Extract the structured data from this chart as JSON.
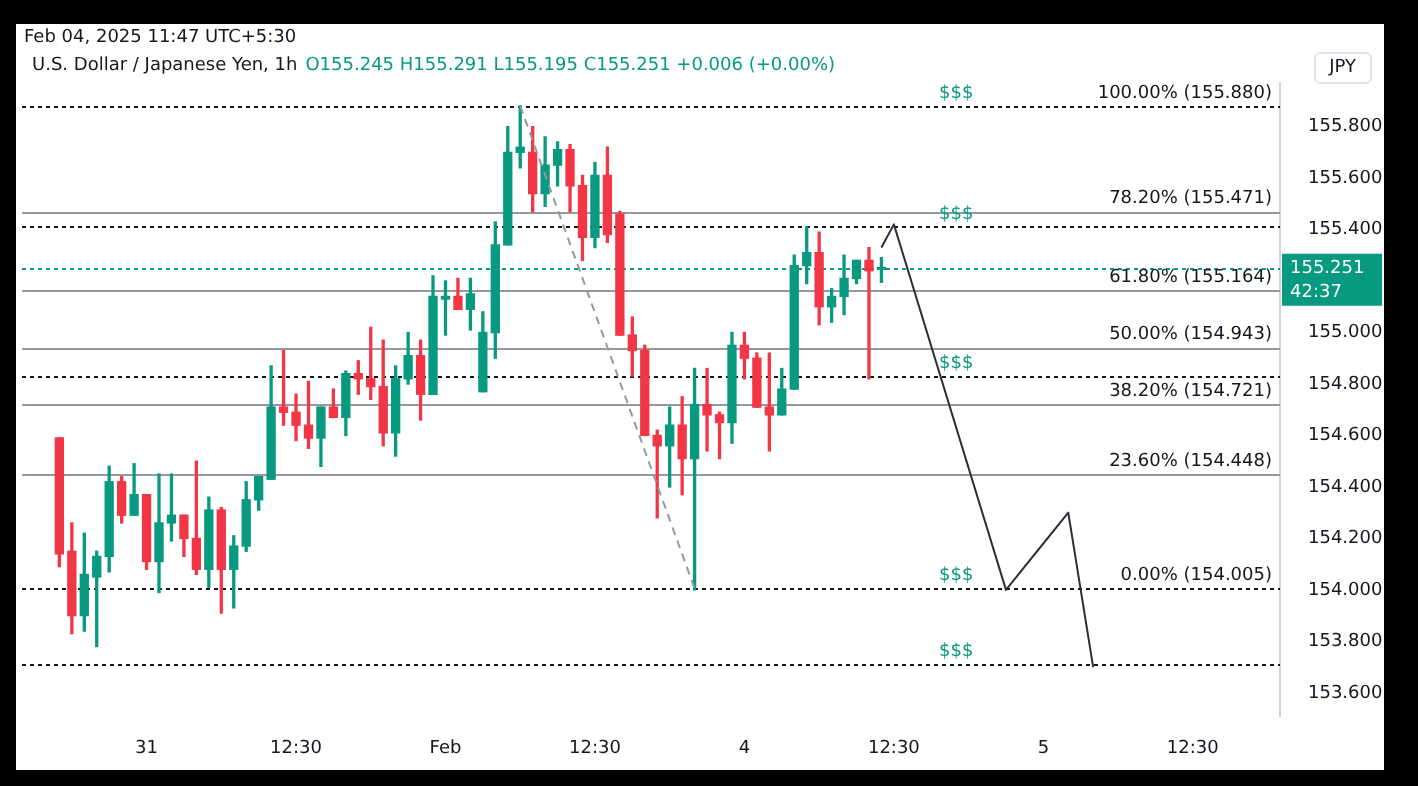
{
  "chart_data": {
    "type": "candlestick",
    "title": "U.S. Dollar / Japanese Yen, 1h",
    "subtitle": "O155.245 H155.291 L155.195 C155.251 +0.006 (+0.00%)",
    "ylabel": "JPY",
    "categories": [
      null,
      null,
      null,
      null,
      null,
      null,
      null,
      null,
      null,
      null,
      "31",
      null,
      null,
      null,
      null,
      null,
      null,
      null,
      null,
      null,
      null,
      null,
      "12:30",
      null,
      null,
      null,
      null,
      null,
      null,
      null,
      null,
      null,
      null,
      null,
      "Feb",
      null,
      null,
      null,
      null,
      null,
      null,
      null,
      null,
      null,
      null,
      null,
      "12:30",
      null,
      null,
      null,
      null,
      null,
      null,
      null,
      null,
      null,
      null,
      null,
      "4",
      null,
      null,
      null,
      null,
      null,
      null,
      null,
      null,
      null,
      null,
      null,
      "12:30",
      null,
      null,
      null,
      null,
      null,
      null,
      null,
      null,
      null,
      null,
      null,
      "5",
      null,
      null,
      null,
      null,
      null,
      null,
      null,
      null,
      null,
      null,
      null,
      "12:30",
      null,
      null,
      null,
      null,
      null,
      null,
      null
    ],
    "ohlc": [
      null,
      null,
      null,
      [
        154.59,
        154.59,
        154.09,
        154.14
      ],
      [
        154.15,
        154.26,
        153.83,
        153.9
      ],
      [
        153.9,
        154.22,
        153.84,
        154.06
      ],
      [
        154.05,
        154.15,
        153.78,
        154.13
      ],
      [
        154.13,
        154.48,
        154.07,
        154.42
      ],
      [
        154.42,
        154.44,
        154.26,
        154.29
      ],
      [
        154.29,
        154.49,
        154.29,
        154.37
      ],
      [
        154.37,
        154.37,
        154.08,
        154.11
      ],
      [
        154.11,
        154.45,
        153.99,
        154.26
      ],
      [
        154.26,
        154.45,
        154.19,
        154.29
      ],
      [
        154.29,
        154.29,
        154.13,
        154.2
      ],
      [
        154.2,
        154.5,
        154.06,
        154.08
      ],
      [
        154.08,
        154.36,
        154.01,
        154.31
      ],
      [
        154.31,
        154.32,
        153.91,
        154.08
      ],
      [
        154.08,
        154.21,
        153.93,
        154.17
      ],
      [
        154.17,
        154.42,
        154.15,
        154.35
      ],
      [
        154.35,
        154.44,
        154.31,
        154.44
      ],
      [
        154.43,
        154.87,
        154.43,
        154.71
      ],
      [
        154.71,
        154.93,
        154.64,
        154.69
      ],
      [
        154.69,
        154.76,
        154.58,
        154.64
      ],
      [
        154.64,
        154.81,
        154.55,
        154.59
      ],
      [
        154.59,
        154.71,
        154.48,
        154.71
      ],
      [
        154.71,
        154.78,
        154.67,
        154.67
      ],
      [
        154.67,
        154.85,
        154.6,
        154.84
      ],
      [
        154.84,
        154.89,
        154.76,
        154.82
      ],
      [
        154.82,
        155.02,
        154.74,
        154.79
      ],
      [
        154.79,
        154.97,
        154.56,
        154.61
      ],
      [
        154.61,
        154.87,
        154.52,
        154.82
      ],
      [
        154.82,
        155.0,
        154.8,
        154.91
      ],
      [
        154.91,
        154.97,
        154.66,
        154.76
      ],
      [
        154.76,
        155.22,
        154.76,
        155.14
      ],
      [
        155.13,
        155.2,
        154.99,
        155.14
      ],
      [
        155.14,
        155.21,
        155.09,
        155.09
      ],
      [
        155.09,
        155.21,
        155.01,
        155.15
      ],
      [
        154.77,
        155.08,
        154.77,
        155.0
      ],
      [
        155.0,
        155.43,
        154.9,
        155.34
      ],
      [
        155.34,
        155.8,
        155.34,
        155.7
      ],
      [
        155.7,
        155.88,
        155.64,
        155.72
      ],
      [
        155.7,
        155.8,
        155.47,
        155.54
      ],
      [
        155.54,
        155.76,
        155.49,
        155.65
      ],
      [
        155.65,
        155.74,
        155.57,
        155.71
      ],
      [
        155.71,
        155.73,
        155.47,
        155.57
      ],
      [
        155.57,
        155.61,
        155.28,
        155.37
      ],
      [
        155.37,
        155.66,
        155.33,
        155.61
      ],
      [
        155.61,
        155.72,
        155.35,
        155.38
      ],
      [
        155.46,
        155.47,
        154.99,
        154.99
      ],
      [
        154.99,
        155.06,
        154.83,
        154.93
      ],
      [
        154.93,
        154.95,
        154.6,
        154.6
      ],
      [
        154.6,
        154.62,
        154.28,
        154.56
      ],
      [
        154.56,
        154.71,
        154.4,
        154.64
      ],
      [
        154.64,
        154.75,
        154.37,
        154.51
      ],
      [
        154.51,
        154.86,
        154.0,
        154.72
      ],
      [
        154.72,
        154.86,
        154.54,
        154.68
      ],
      [
        154.68,
        154.69,
        154.51,
        154.65
      ],
      [
        154.65,
        155.0,
        154.57,
        154.95
      ],
      [
        154.95,
        155.0,
        154.82,
        154.9
      ],
      [
        154.9,
        154.92,
        154.71,
        154.71
      ],
      [
        154.71,
        154.92,
        154.54,
        154.68
      ],
      [
        154.68,
        154.86,
        154.68,
        154.78
      ],
      [
        154.78,
        155.3,
        154.78,
        155.26
      ],
      [
        155.26,
        155.41,
        155.19,
        155.31
      ],
      [
        155.31,
        155.39,
        155.03,
        155.1
      ],
      [
        155.1,
        155.17,
        155.04,
        155.14
      ],
      [
        155.14,
        155.3,
        155.07,
        155.21
      ],
      [
        155.21,
        155.28,
        155.19,
        155.28
      ],
      [
        155.28,
        155.33,
        154.82,
        155.24
      ],
      [
        155.245,
        155.291,
        155.195,
        155.251
      ],
      null,
      null,
      null,
      null,
      null,
      null,
      null,
      null,
      null,
      null,
      null,
      null,
      null,
      null,
      null,
      null,
      null,
      null,
      null,
      null,
      null,
      null,
      null,
      null,
      null,
      null,
      null,
      null,
      null,
      null,
      null,
      null
    ],
    "series": [
      {
        "type": "line",
        "color": "#2a2e39",
        "line_style": "solid",
        "values": [
          null,
          null,
          null,
          null,
          null,
          null,
          null,
          null,
          null,
          null,
          null,
          null,
          null,
          null,
          null,
          null,
          null,
          null,
          null,
          null,
          null,
          null,
          null,
          null,
          null,
          null,
          null,
          null,
          null,
          null,
          null,
          null,
          null,
          null,
          null,
          null,
          null,
          null,
          null,
          null,
          null,
          null,
          null,
          null,
          null,
          null,
          null,
          null,
          null,
          null,
          null,
          null,
          null,
          null,
          null,
          null,
          null,
          null,
          null,
          null,
          null,
          null,
          null,
          null,
          null,
          null,
          null,
          null,
          null,
          155.33,
          155.42,
          null,
          null,
          null,
          null,
          null,
          null,
          null,
          null,
          154.0,
          null,
          null,
          null,
          null,
          154.3,
          null,
          153.7,
          null,
          null,
          null,
          null,
          null,
          null,
          null,
          null,
          null,
          null,
          null,
          null,
          null,
          null,
          null
        ]
      },
      {
        "type": "line",
        "color": "#9598a1",
        "line_style": "dashed",
        "values": [
          null,
          null,
          null,
          null,
          null,
          null,
          null,
          null,
          null,
          null,
          null,
          null,
          null,
          null,
          null,
          null,
          null,
          null,
          null,
          null,
          null,
          null,
          null,
          null,
          null,
          null,
          null,
          null,
          null,
          null,
          null,
          null,
          null,
          null,
          null,
          null,
          null,
          null,
          null,
          null,
          155.88,
          null,
          null,
          null,
          null,
          null,
          null,
          null,
          null,
          null,
          null,
          null,
          null,
          null,
          154.005,
          null,
          null,
          null,
          null,
          null,
          null,
          null,
          null,
          null,
          null,
          null,
          null,
          null,
          null,
          null,
          null,
          null,
          null,
          null,
          null,
          null,
          null,
          null,
          null,
          null,
          null,
          null,
          null,
          null,
          null,
          null,
          null,
          null,
          null,
          null,
          null,
          null,
          null,
          null,
          null,
          null,
          null,
          null,
          null,
          null,
          null,
          null
        ]
      }
    ],
    "ylim": [
      153.51,
      155.97
    ],
    "yticks": [
      {
        "value": 153.6,
        "label": "153.600"
      },
      {
        "value": 153.8,
        "label": "153.800"
      },
      {
        "value": 154.0,
        "label": "154.000"
      },
      {
        "value": 154.2,
        "label": "154.200"
      },
      {
        "value": 154.4,
        "label": "154.400"
      },
      {
        "value": 154.6,
        "label": "154.600"
      },
      {
        "value": 154.8,
        "label": "154.800"
      },
      {
        "value": 155.0,
        "label": "155.000"
      },
      {
        "value": 155.4,
        "label": "155.400"
      },
      {
        "value": 155.6,
        "label": "155.600"
      },
      {
        "value": 155.8,
        "label": "155.800"
      }
    ],
    "ref_lines": [
      {
        "axis": "y",
        "value": 155.88,
        "label": "100.00% (155.880)",
        "color": "#131722",
        "line_style": "dotted"
      },
      {
        "axis": "y",
        "value": 155.471,
        "label": "78.20% (155.471)",
        "color": "#9598a1",
        "line_style": "solid"
      },
      {
        "axis": "y",
        "value": 155.164,
        "label": "61.80% (155.164)",
        "color": "#9598a1",
        "line_style": "solid"
      },
      {
        "axis": "y",
        "value": 154.943,
        "label": "50.00% (154.943)",
        "color": "#9598a1",
        "line_style": "solid"
      },
      {
        "axis": "y",
        "value": 154.721,
        "label": "38.20% (154.721)",
        "color": "#9598a1",
        "line_style": "solid"
      },
      {
        "axis": "y",
        "value": 154.448,
        "label": "23.60% (154.448)",
        "color": "#9598a1",
        "line_style": "solid"
      },
      {
        "axis": "y",
        "value": 154.005,
        "label": "0.00% (154.005)",
        "color": "#131722",
        "line_style": "dotted"
      },
      {
        "axis": "y",
        "value": 155.41,
        "color": "#131722",
        "line_style": "dotted"
      },
      {
        "axis": "y",
        "value": 154.83,
        "color": "#131722",
        "line_style": "dotted"
      },
      {
        "axis": "y",
        "value": 153.71,
        "color": "#131722",
        "line_style": "dotted"
      },
      {
        "axis": "y",
        "value": 155.251,
        "label": "155.251\n42:37",
        "color": "#089981",
        "line_style": "dotted"
      }
    ],
    "annotations": [
      "Feb 04, 2025 11:47 UTC+5:30",
      {
        "text": "$$$",
        "y": 155.88
      },
      {
        "text": "$$$",
        "y": 155.41
      },
      {
        "text": "$$$",
        "y": 154.83
      },
      {
        "text": "$$$",
        "y": 154.005
      },
      {
        "text": "$$$",
        "y": 153.71
      }
    ]
  }
}
